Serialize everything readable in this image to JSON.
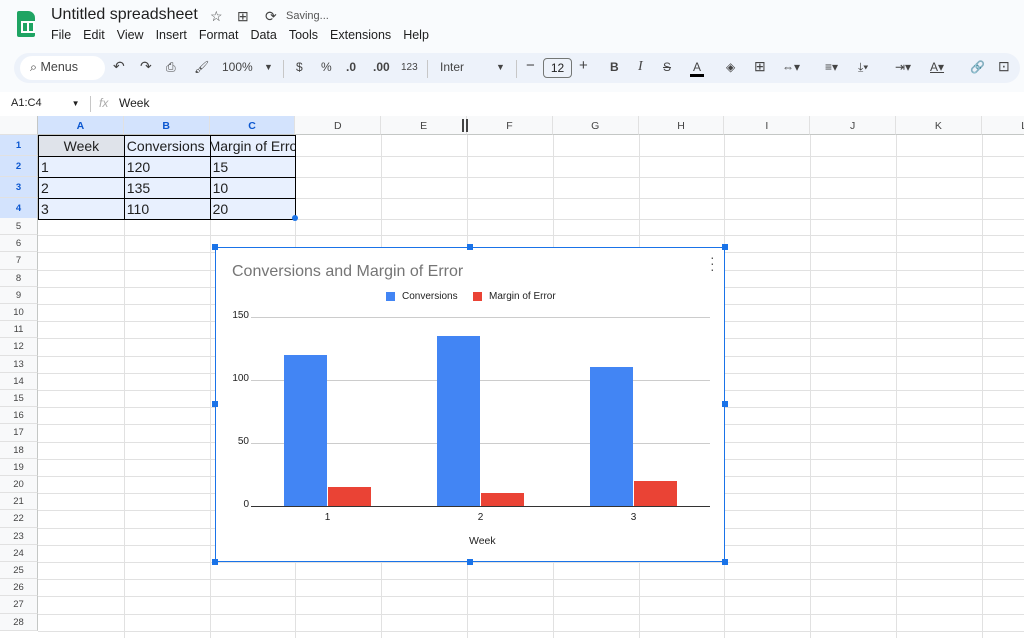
{
  "app": {
    "title": "Untitled spreadsheet",
    "status": "Saving...",
    "icons": [
      "star-icon",
      "move-folder-icon",
      "sync-icon"
    ]
  },
  "menu": [
    "File",
    "Edit",
    "View",
    "Insert",
    "Format",
    "Data",
    "Tools",
    "Extensions",
    "Help"
  ],
  "toolbar": {
    "search_label": "Menus",
    "zoom": "100%",
    "currency": "$",
    "percent": "%",
    "dec_less": ".0",
    "dec_more": ".00",
    "format_123": "123",
    "font": "Inter",
    "font_size": "12",
    "bold": "B",
    "italic": "I",
    "text_color": "A"
  },
  "formula_bar": {
    "name_box": "A1:C4",
    "fx": "fx",
    "value": "Week"
  },
  "sheet": {
    "columns": [
      "A",
      "B",
      "C",
      "D",
      "E",
      "F",
      "G",
      "H",
      "I",
      "J",
      "K",
      "L"
    ],
    "rows": [
      "1",
      "2",
      "3",
      "4",
      "5",
      "6",
      "7",
      "8",
      "9",
      "10",
      "11",
      "12",
      "13",
      "14",
      "15",
      "16",
      "17",
      "18",
      "19",
      "20",
      "21",
      "22",
      "23",
      "24",
      "25",
      "26",
      "27",
      "28"
    ],
    "cells": [
      [
        "Week",
        "Conversions",
        "Margin of Error"
      ],
      [
        "1",
        "120",
        "15"
      ],
      [
        "2",
        "135",
        "10"
      ],
      [
        "3",
        "110",
        "20"
      ]
    ]
  },
  "chart_data": {
    "type": "bar",
    "title": "Conversions and Margin of Error",
    "xlabel": "Week",
    "ylabel": "",
    "categories": [
      "1",
      "2",
      "3"
    ],
    "series": [
      {
        "name": "Conversions",
        "values": [
          120,
          135,
          110
        ],
        "color": "#4285f4"
      },
      {
        "name": "Margin of Error",
        "values": [
          15,
          10,
          20
        ],
        "color": "#ea4335"
      }
    ],
    "ylim": [
      0,
      150
    ],
    "yticks": [
      "0",
      "50",
      "100",
      "150"
    ],
    "grid": true,
    "legend": "top"
  }
}
